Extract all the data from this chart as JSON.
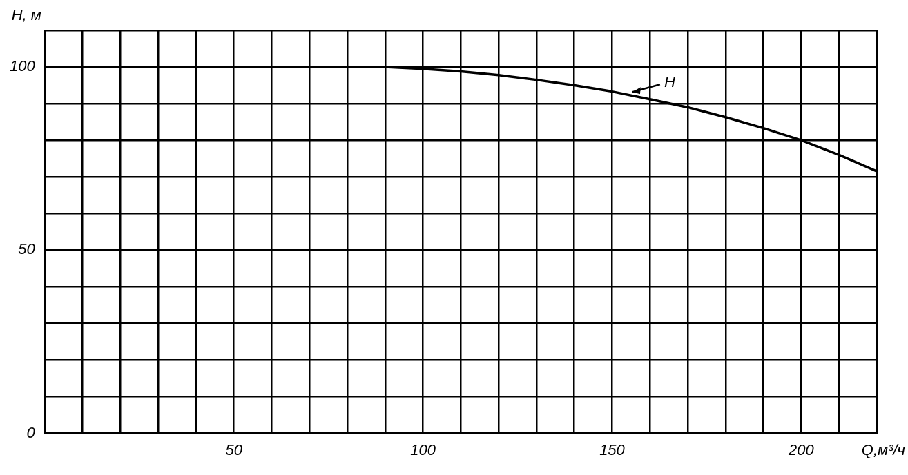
{
  "chart_data": {
    "type": "line",
    "xlabel": "Q,м³/ч",
    "ylabel": "H, м",
    "x": [
      0,
      20,
      40,
      60,
      80,
      90,
      100,
      110,
      120,
      130,
      140,
      150,
      160,
      170,
      180,
      190,
      200,
      210,
      220
    ],
    "series": [
      {
        "color": "#000000",
        "values": [
          100,
          100,
          100,
          100,
          100,
          100,
          99.5,
          98.8,
          97.8,
          96.5,
          95,
          93.3,
          91.2,
          89,
          86.3,
          83.3,
          80,
          76,
          71.5
        ]
      }
    ],
    "xlim": [
      0,
      220
    ],
    "ylim": [
      0,
      110
    ],
    "xticks": [
      {
        "value": 0,
        "label": null
      },
      {
        "value": 10,
        "label": null
      },
      {
        "value": 20,
        "label": null
      },
      {
        "value": 30,
        "label": null
      },
      {
        "value": 40,
        "label": null
      },
      50,
      {
        "value": 60,
        "label": null
      },
      {
        "value": 70,
        "label": null
      },
      {
        "value": 80,
        "label": null
      },
      {
        "value": 90,
        "label": null
      },
      100,
      {
        "value": 110,
        "label": null
      },
      {
        "value": 120,
        "label": null
      },
      {
        "value": 130,
        "label": null
      },
      {
        "value": 140,
        "label": null
      },
      150,
      {
        "value": 160,
        "label": null
      },
      {
        "value": 170,
        "label": null
      },
      {
        "value": 180,
        "label": null
      },
      {
        "value": 190,
        "label": null
      },
      200,
      {
        "value": 210,
        "label": null
      },
      {
        "value": 220,
        "label": null
      }
    ],
    "yticks": [
      0,
      {
        "value": 10,
        "label": null
      },
      {
        "value": 20,
        "label": null
      },
      {
        "value": 30,
        "label": null
      },
      {
        "value": 40,
        "label": null
      },
      50,
      {
        "value": 60,
        "label": null
      },
      {
        "value": 70,
        "label": null
      },
      {
        "value": 80,
        "label": null
      },
      {
        "value": 90,
        "label": null
      },
      100,
      {
        "value": 110,
        "label": null
      }
    ],
    "grid": true,
    "marker": "none",
    "line_style": "solid",
    "annotations": [
      {
        "text": "H",
        "x": 155,
        "y": 93
      }
    ]
  }
}
